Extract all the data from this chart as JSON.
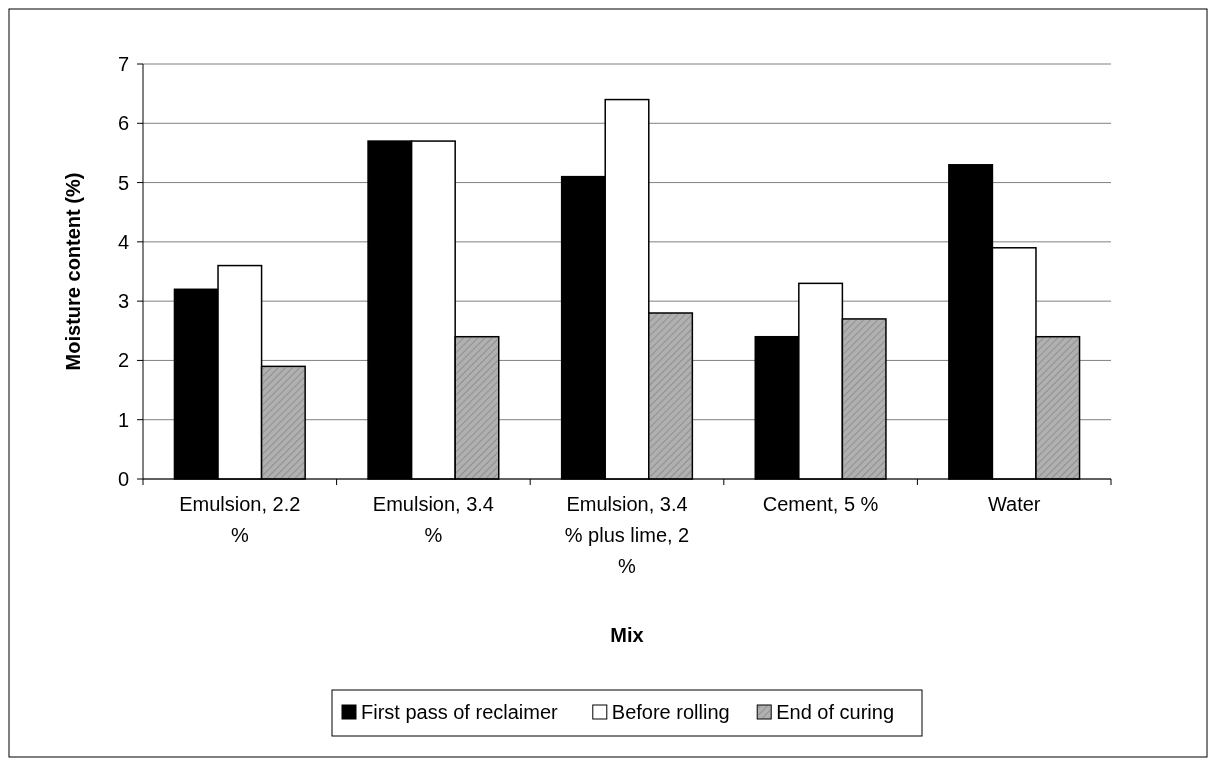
{
  "chart_data": {
    "type": "bar",
    "xlabel": "Mix",
    "ylabel": "Moisture content (%)",
    "categories": [
      "Emulsion, 2.2 %",
      "Emulsion, 3.4 %",
      "Emulsion, 3.4 % plus lime, 2 %",
      "Cement, 5 %",
      "Water"
    ],
    "series": [
      {
        "name": "First pass of reclaimer",
        "color": "#000000",
        "values": [
          3.2,
          5.7,
          5.1,
          2.4,
          5.3
        ]
      },
      {
        "name": "Before rolling",
        "color": "#ffffff",
        "values": [
          3.6,
          5.7,
          6.4,
          3.3,
          3.9
        ]
      },
      {
        "name": "End of curing",
        "color": "#b0b0b0",
        "values": [
          1.9,
          2.4,
          2.8,
          2.7,
          2.4
        ]
      }
    ],
    "ylim": [
      0,
      7
    ],
    "yticks": [
      0,
      1,
      2,
      3,
      4,
      5,
      6,
      7
    ],
    "grid": "y",
    "legend": "bottom"
  }
}
